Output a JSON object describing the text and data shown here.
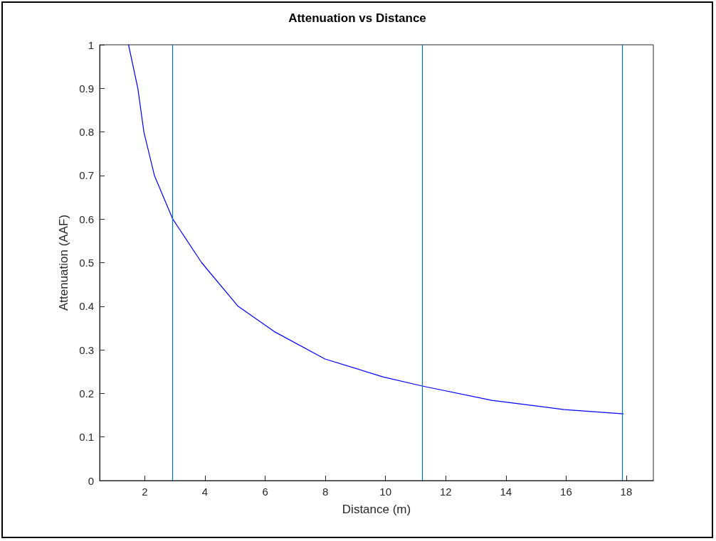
{
  "chart_data": {
    "type": "line",
    "title": "Attenuation vs Distance",
    "xlabel": "Distance (m)",
    "ylabel": "Attenuation (AAF)",
    "series": [
      {
        "color": "#0000ff",
        "x": [
          1.46,
          1.77,
          1.97,
          2.32,
          2.93,
          3.89,
          5.1,
          6.3,
          7.99,
          9.91,
          11.22,
          13.53,
          15.93,
          17.9
        ],
        "values": [
          1.0,
          0.9,
          0.8,
          0.7,
          0.6,
          0.5,
          0.4,
          0.342,
          0.279,
          0.238,
          0.217,
          0.184,
          0.163,
          0.153
        ]
      }
    ],
    "ref_lines": [
      {
        "axis": "x",
        "value": 2.93,
        "color": "#0072bd"
      },
      {
        "axis": "x",
        "value": 11.22,
        "color": "#0072bd"
      },
      {
        "axis": "x",
        "value": 17.87,
        "color": "#0072bd"
      }
    ],
    "xlim": [
      0.5,
      18.9
    ],
    "xticks": [
      2,
      4,
      6,
      8,
      10,
      12,
      14,
      16,
      18
    ],
    "ylim": [
      0,
      1
    ],
    "yticks": [
      0,
      0.1,
      0.2,
      0.3,
      0.4,
      0.5,
      0.6,
      0.7,
      0.8,
      0.9,
      1
    ],
    "grid": false,
    "marker": "none",
    "line_style": "solid"
  }
}
